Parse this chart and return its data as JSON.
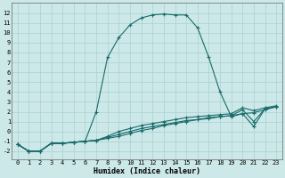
{
  "xlabel": "Humidex (Indice chaleur)",
  "x_ticks": [
    0,
    1,
    2,
    3,
    4,
    5,
    6,
    7,
    8,
    9,
    10,
    11,
    12,
    13,
    14,
    15,
    16,
    17,
    18,
    19,
    20,
    21,
    22,
    23
  ],
  "ylim": [
    -2.8,
    13.0
  ],
  "xlim": [
    -0.5,
    23.5
  ],
  "yticks": [
    -2,
    -1,
    0,
    1,
    2,
    3,
    4,
    5,
    6,
    7,
    8,
    9,
    10,
    11,
    12
  ],
  "bg_color": "#cce8e8",
  "grid_color": "#aad0d0",
  "line_color": "#1a6b6b",
  "curves": {
    "main": {
      "x": [
        0,
        1,
        2,
        3,
        4,
        5,
        6,
        7,
        8,
        9,
        10,
        11,
        12,
        13,
        14,
        15,
        16,
        17,
        18,
        19,
        20,
        21,
        22,
        23
      ],
      "y": [
        -1.3,
        -2.0,
        -2.0,
        -1.2,
        -1.2,
        -1.1,
        -1.0,
        2.0,
        7.5,
        9.5,
        10.8,
        11.5,
        11.8,
        11.9,
        11.8,
        11.8,
        10.5,
        7.5,
        4.0,
        1.5,
        1.8,
        0.5,
        2.3,
        2.5
      ]
    },
    "flat1": {
      "x": [
        0,
        1,
        2,
        3,
        4,
        5,
        6,
        7,
        8,
        9,
        10,
        11,
        12,
        13,
        14,
        15,
        16,
        17,
        18,
        19,
        20,
        21,
        22,
        23
      ],
      "y": [
        -1.3,
        -2.0,
        -2.0,
        -1.2,
        -1.2,
        -1.1,
        -1.0,
        -0.9,
        -0.7,
        -0.5,
        -0.2,
        0.1,
        0.3,
        0.6,
        0.8,
        1.0,
        1.2,
        1.4,
        1.5,
        1.6,
        1.8,
        1.9,
        2.2,
        2.5
      ]
    },
    "flat2": {
      "x": [
        0,
        1,
        2,
        3,
        4,
        5,
        6,
        7,
        8,
        9,
        10,
        11,
        12,
        13,
        14,
        15,
        16,
        17,
        18,
        19,
        20,
        21,
        22,
        23
      ],
      "y": [
        -1.3,
        -2.0,
        -2.0,
        -1.2,
        -1.2,
        -1.1,
        -1.0,
        -0.9,
        -0.6,
        -0.3,
        0.0,
        0.3,
        0.5,
        0.7,
        0.9,
        1.1,
        1.2,
        1.3,
        1.5,
        1.6,
        2.2,
        1.0,
        2.3,
        2.5
      ]
    },
    "flat3": {
      "x": [
        0,
        1,
        2,
        3,
        4,
        5,
        6,
        7,
        8,
        9,
        10,
        11,
        12,
        13,
        14,
        15,
        16,
        17,
        18,
        19,
        20,
        21,
        22,
        23
      ],
      "y": [
        -1.3,
        -2.0,
        -2.0,
        -1.2,
        -1.2,
        -1.1,
        -1.0,
        -0.9,
        -0.5,
        0.0,
        0.3,
        0.6,
        0.8,
        1.0,
        1.2,
        1.4,
        1.5,
        1.6,
        1.7,
        1.8,
        2.4,
        2.1,
        2.4,
        2.6
      ]
    }
  }
}
